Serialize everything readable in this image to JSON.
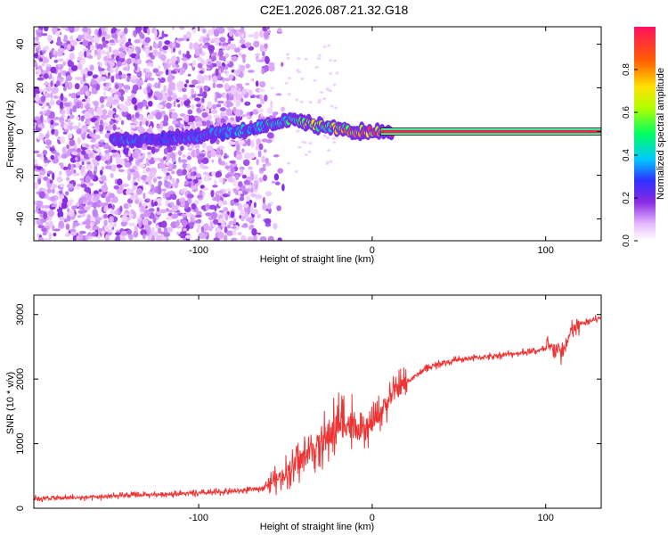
{
  "title": "C2E1.2026.087.21.32.G18",
  "chart_data": [
    {
      "type": "heatmap",
      "name": "spectrogram",
      "xlabel": "Height of straight line (km)",
      "ylabel": "Frequency (Hz)",
      "xlim": [
        -195,
        132
      ],
      "ylim": [
        -50,
        48
      ],
      "xticks": [
        -100,
        0,
        100
      ],
      "xtick_labels": [
        "-100",
        "0",
        "100"
      ],
      "yticks": [
        -40,
        -20,
        0,
        20,
        40
      ],
      "ytick_labels": [
        "-40",
        "-20",
        "0",
        "20",
        "40"
      ],
      "ridge": {
        "description_points_x": [
          -145,
          -120,
          -100,
          -80,
          -65,
          -55,
          -45,
          -35,
          -25,
          -15,
          -5,
          0,
          10,
          130
        ],
        "frequency_hz": [
          -4,
          -3,
          -2,
          0,
          2,
          4,
          6,
          3,
          2,
          1,
          0,
          0,
          0,
          0
        ],
        "amplitude": [
          0.3,
          0.3,
          0.3,
          0.35,
          0.4,
          0.45,
          0.5,
          0.6,
          0.6,
          0.7,
          0.75,
          0.8,
          0.85,
          0.85
        ]
      },
      "colorbar": {
        "label": "Normalized spectral amplitude",
        "range": [
          0,
          1
        ],
        "ticks": [
          0.0,
          0.2,
          0.4,
          0.6,
          0.8
        ],
        "tick_labels": [
          "0.0",
          "0.2",
          "0.4",
          "0.6",
          "0.8"
        ]
      }
    },
    {
      "type": "line",
      "name": "snr",
      "xlabel": "Height of straight line (km)",
      "ylabel": "SNR (10 * v/v)",
      "xlim": [
        -195,
        132
      ],
      "ylim": [
        0,
        3300
      ],
      "xticks": [
        -100,
        0,
        100
      ],
      "xtick_labels": [
        "-100",
        "0",
        "100"
      ],
      "yticks": [
        0,
        1000,
        2000,
        3000
      ],
      "ytick_labels": [
        "0",
        "1000",
        "2000",
        "3000"
      ],
      "series": [
        {
          "name": "SNR",
          "color": "#ee3333",
          "x": [
            -195,
            -180,
            -160,
            -140,
            -120,
            -100,
            -80,
            -65,
            -55,
            -45,
            -35,
            -25,
            -20,
            -15,
            -10,
            -5,
            0,
            5,
            10,
            15,
            20,
            25,
            30,
            40,
            50,
            60,
            70,
            80,
            90,
            100,
            105,
            110,
            115,
            120,
            132
          ],
          "values": [
            150,
            160,
            170,
            200,
            220,
            230,
            260,
            300,
            450,
            650,
            900,
            1100,
            1300,
            1350,
            1200,
            1150,
            1300,
            1500,
            1700,
            1850,
            1950,
            2050,
            2150,
            2250,
            2300,
            2330,
            2360,
            2390,
            2420,
            2460,
            2500,
            2400,
            2750,
            2850,
            2950
          ]
        }
      ]
    }
  ]
}
